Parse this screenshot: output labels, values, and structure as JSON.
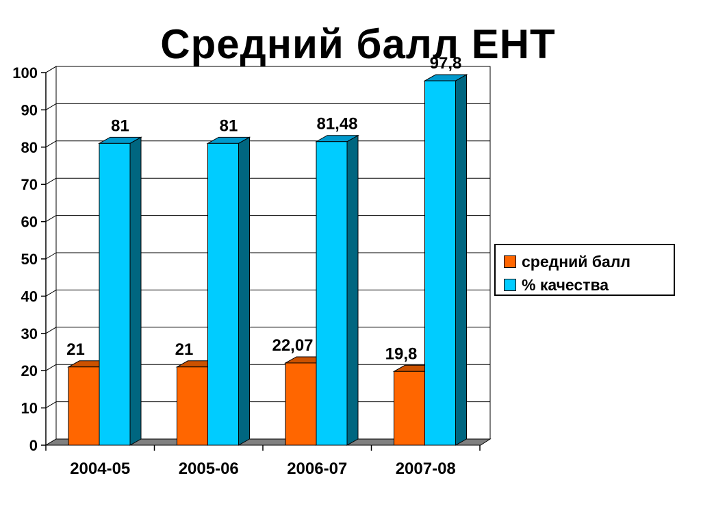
{
  "chart_data": {
    "type": "bar",
    "title": "Средний балл ЕНТ",
    "categories": [
      "2004-05",
      "2005-06",
      "2006-07",
      "2007-08"
    ],
    "series": [
      {
        "name": "средний балл",
        "values": [
          21,
          21,
          22.07,
          19.8
        ],
        "labels": [
          "21",
          "21",
          "22,07",
          "19,8"
        ],
        "color": "#ff6600",
        "side_color": "#b34400",
        "top_color": "#cc5200"
      },
      {
        "name": "% качества",
        "values": [
          81,
          81,
          81.48,
          97.8
        ],
        "labels": [
          "81",
          "81",
          "81,48",
          "97,8"
        ],
        "color": "#00ccff",
        "side_color": "#006680",
        "top_color": "#0099cc"
      }
    ],
    "ylim": [
      0,
      100
    ],
    "yticks": [
      0,
      10,
      20,
      30,
      40,
      50,
      60,
      70,
      80,
      90,
      100
    ],
    "xlabel": "",
    "ylabel": "",
    "grid": true,
    "legend_position": "right"
  }
}
